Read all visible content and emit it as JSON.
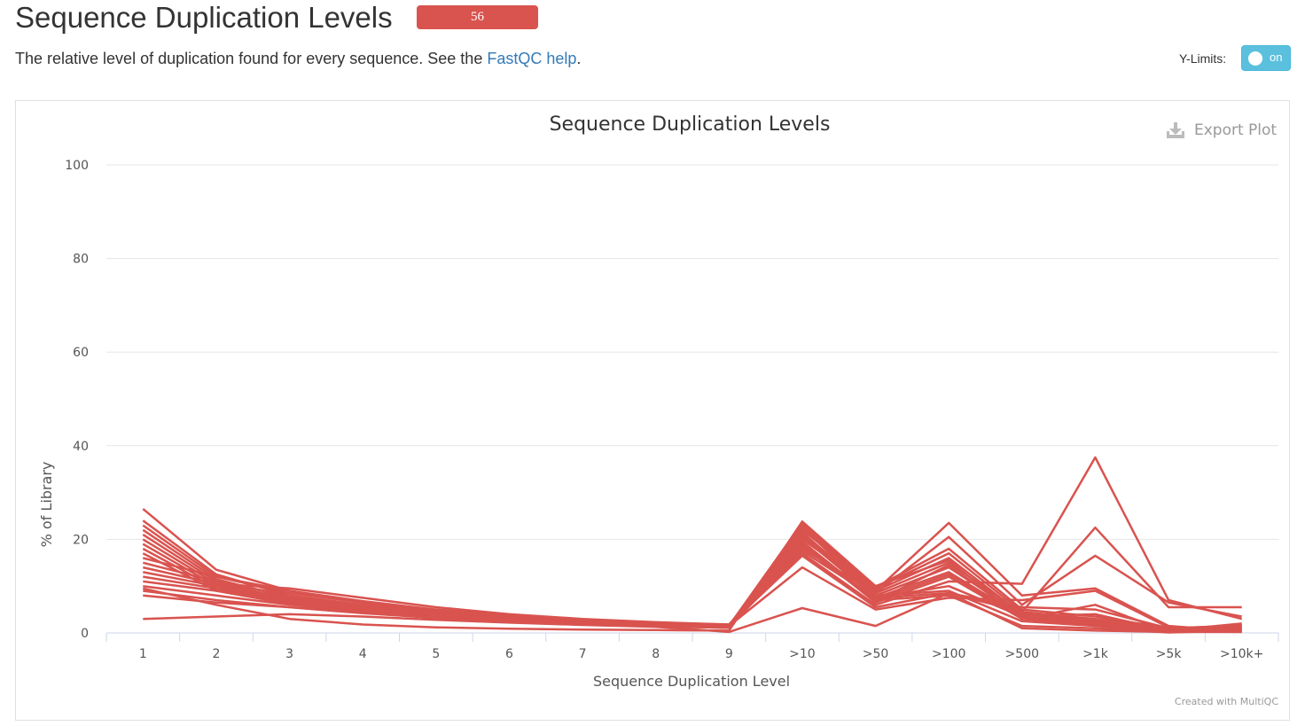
{
  "header": {
    "title": "Sequence Duplication Levels",
    "badge_count": "56",
    "description_prefix": "The relative level of duplication found for every sequence. See the ",
    "help_link": "FastQC help",
    "description_suffix": ".",
    "ylimits_label": "Y-Limits:",
    "toggle_label": "on"
  },
  "plot": {
    "export_label": "Export Plot",
    "credit": "Created with MultiQC",
    "line_color": "#d9534f"
  },
  "chart_data": {
    "type": "line",
    "title": "Sequence Duplication Levels",
    "xlabel": "Sequence Duplication Level",
    "ylabel": "% of Library",
    "ylim": [
      0,
      100
    ],
    "yticks": [
      0,
      20,
      40,
      60,
      80,
      100
    ],
    "grid": true,
    "categories": [
      "1",
      "2",
      "3",
      "4",
      "5",
      "6",
      "7",
      "8",
      "9",
      ">10",
      ">50",
      ">100",
      ">500",
      ">1k",
      ">5k",
      ">10k+"
    ],
    "series": [
      {
        "values": [
          26.5,
          13.5,
          9.0,
          6.5,
          4.5,
          3.2,
          2.5,
          2.0,
          1.5,
          23.5,
          9.5,
          17.0,
          4.5,
          3.0,
          1.0,
          1.5
        ]
      },
      {
        "values": [
          24.0,
          12.5,
          8.0,
          6.0,
          4.2,
          3.0,
          2.3,
          1.8,
          1.5,
          23.0,
          9.0,
          16.0,
          4.0,
          2.5,
          0.8,
          1.2
        ]
      },
      {
        "values": [
          23.0,
          12.0,
          8.5,
          6.5,
          4.8,
          3.5,
          2.6,
          2.0,
          1.6,
          22.5,
          8.5,
          15.0,
          4.2,
          2.8,
          0.9,
          1.3
        ]
      },
      {
        "values": [
          22.0,
          11.5,
          7.5,
          5.5,
          4.0,
          2.8,
          2.2,
          1.7,
          1.4,
          22.0,
          9.8,
          18.0,
          5.0,
          3.5,
          1.0,
          1.6
        ]
      },
      {
        "values": [
          21.0,
          11.0,
          7.0,
          5.2,
          3.8,
          2.7,
          2.1,
          1.6,
          1.3,
          21.5,
          8.0,
          14.0,
          3.8,
          2.2,
          0.7,
          1.0
        ]
      },
      {
        "values": [
          20.0,
          10.5,
          7.2,
          5.0,
          3.6,
          2.6,
          2.0,
          1.5,
          1.2,
          20.5,
          7.5,
          13.0,
          3.5,
          2.0,
          0.6,
          0.9
        ]
      },
      {
        "values": [
          19.0,
          10.0,
          6.8,
          4.8,
          3.4,
          2.5,
          1.9,
          1.5,
          1.2,
          19.5,
          7.0,
          12.5,
          3.3,
          2.0,
          0.6,
          0.8
        ]
      },
      {
        "values": [
          18.0,
          9.5,
          6.5,
          4.6,
          3.3,
          2.4,
          1.8,
          1.4,
          1.1,
          19.0,
          6.5,
          12.0,
          3.0,
          1.8,
          0.5,
          0.8
        ]
      },
      {
        "values": [
          17.0,
          9.0,
          6.2,
          4.4,
          3.2,
          2.3,
          1.8,
          1.4,
          1.1,
          18.5,
          6.8,
          14.5,
          3.2,
          2.0,
          0.5,
          0.9
        ]
      },
      {
        "values": [
          16.0,
          12.0,
          9.0,
          6.8,
          5.0,
          3.8,
          2.9,
          2.2,
          1.8,
          17.0,
          6.0,
          11.0,
          10.5,
          37.5,
          7.0,
          3.0
        ]
      },
      {
        "values": [
          15.0,
          11.0,
          8.0,
          6.0,
          4.5,
          3.3,
          2.6,
          2.0,
          1.7,
          16.5,
          5.5,
          8.5,
          4.5,
          22.5,
          5.5,
          5.5
        ]
      },
      {
        "values": [
          14.0,
          10.5,
          9.5,
          7.5,
          5.5,
          4.0,
          3.0,
          2.3,
          1.8,
          18.0,
          8.5,
          20.5,
          6.0,
          16.5,
          6.5,
          3.5
        ]
      },
      {
        "values": [
          13.0,
          10.0,
          7.5,
          5.8,
          4.3,
          3.1,
          2.4,
          1.9,
          1.5,
          20.0,
          9.0,
          23.5,
          8.0,
          9.5,
          1.5,
          0.3
        ]
      },
      {
        "values": [
          12.0,
          9.5,
          7.0,
          5.5,
          4.0,
          3.0,
          2.3,
          1.8,
          1.5,
          14.0,
          5.0,
          7.5,
          7.0,
          9.0,
          1.2,
          0.3
        ]
      },
      {
        "values": [
          11.0,
          9.0,
          6.8,
          5.2,
          3.9,
          2.9,
          2.2,
          1.7,
          1.4,
          21.0,
          7.5,
          10.0,
          3.5,
          4.0,
          0.5,
          2.0
        ]
      },
      {
        "values": [
          10.0,
          8.0,
          6.0,
          4.5,
          3.5,
          2.6,
          2.0,
          1.6,
          1.3,
          22.5,
          8.0,
          9.0,
          2.5,
          1.5,
          0.2,
          1.8
        ]
      },
      {
        "values": [
          9.0,
          7.0,
          5.5,
          4.3,
          3.3,
          2.5,
          1.9,
          1.5,
          1.2,
          23.0,
          7.0,
          8.0,
          1.5,
          1.0,
          0.1,
          0.5
        ]
      },
      {
        "values": [
          8.0,
          6.5,
          5.5,
          4.2,
          3.2,
          2.4,
          1.9,
          1.5,
          1.2,
          17.5,
          7.5,
          8.5,
          5.5,
          5.0,
          1.0,
          0.4
        ]
      },
      {
        "values": [
          3.0,
          3.5,
          4.0,
          3.5,
          2.8,
          2.2,
          1.7,
          1.3,
          0.2,
          5.3,
          1.5,
          8.5,
          1.0,
          0.5,
          0.2,
          0.2
        ]
      },
      {
        "values": [
          9.5,
          6.0,
          3.0,
          1.8,
          1.2,
          0.9,
          0.7,
          0.6,
          0.5,
          23.8,
          10.0,
          15.5,
          3.0,
          6.0,
          0.3,
          0.2
        ]
      }
    ]
  }
}
